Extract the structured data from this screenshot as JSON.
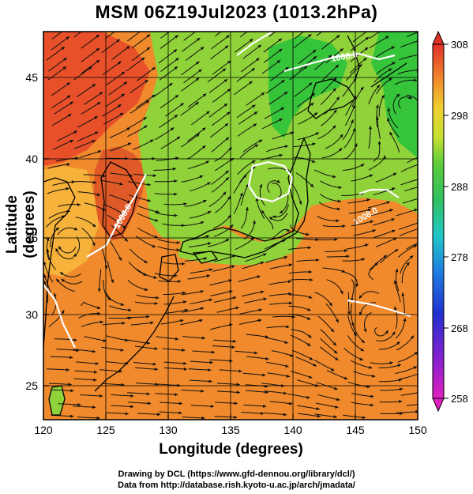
{
  "header": {
    "title": "MSM 06Z19Jul2023 (1013.2hPa)"
  },
  "axes": {
    "xlabel": "Longitude (degrees)",
    "ylabel": "Latitude  (degrees)",
    "x_ticks": [
      "120",
      "125",
      "130",
      "135",
      "140",
      "145",
      "150"
    ],
    "y_ticks": [
      "25",
      "30",
      "35",
      "40",
      "45"
    ],
    "x_range": [
      120,
      150
    ],
    "y_range": [
      22.5,
      48
    ]
  },
  "colorbar": {
    "ticks": [
      "308",
      "298",
      "288",
      "278",
      "268",
      "258"
    ],
    "range": [
      258,
      308
    ]
  },
  "isobars": [
    "1008.0",
    "1008.0",
    "1008.0"
  ],
  "colors": {
    "hot": "#e8502a",
    "warm": "#f08a2c",
    "mild": "#f6b23a",
    "cool": "#8fd23a",
    "cold": "#35c43a",
    "sea_dark": "#e05a28"
  },
  "footer": {
    "line1": "Drawing by DCL (https://www.gfd-dennou.org/library/dcl/)",
    "line2": "Data from http://database.rish.kyoto-u.ac.jp/arch/jmadata/"
  }
}
